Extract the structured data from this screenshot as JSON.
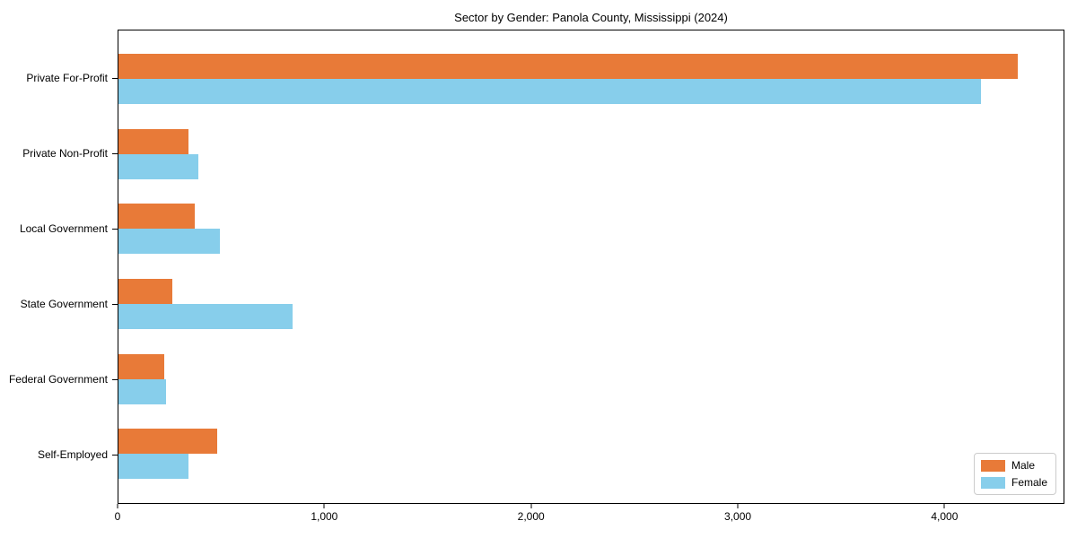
{
  "chart_data": {
    "type": "bar",
    "orientation": "horizontal",
    "title": "Sector by Gender: Panola County, Mississippi (2024)",
    "categories": [
      "Private For-Profit",
      "Private Non-Profit",
      "Local Government",
      "State Government",
      "Federal Government",
      "Self-Employed"
    ],
    "series": [
      {
        "name": "Male",
        "color": "#e87a38",
        "values": [
          4360,
          340,
          370,
          260,
          220,
          480
        ]
      },
      {
        "name": "Female",
        "color": "#87ceeb",
        "values": [
          4180,
          385,
          490,
          845,
          230,
          340
        ]
      }
    ],
    "xlabel": "",
    "ylabel": "",
    "xlim": [
      0,
      4580
    ],
    "xticks": [
      0,
      1000,
      2000,
      3000,
      4000
    ],
    "xtick_labels": [
      "0",
      "1,000",
      "2,000",
      "3,000",
      "4,000"
    ],
    "grid": false,
    "legend": {
      "position": "lower right",
      "items": [
        "Male",
        "Female"
      ]
    }
  }
}
